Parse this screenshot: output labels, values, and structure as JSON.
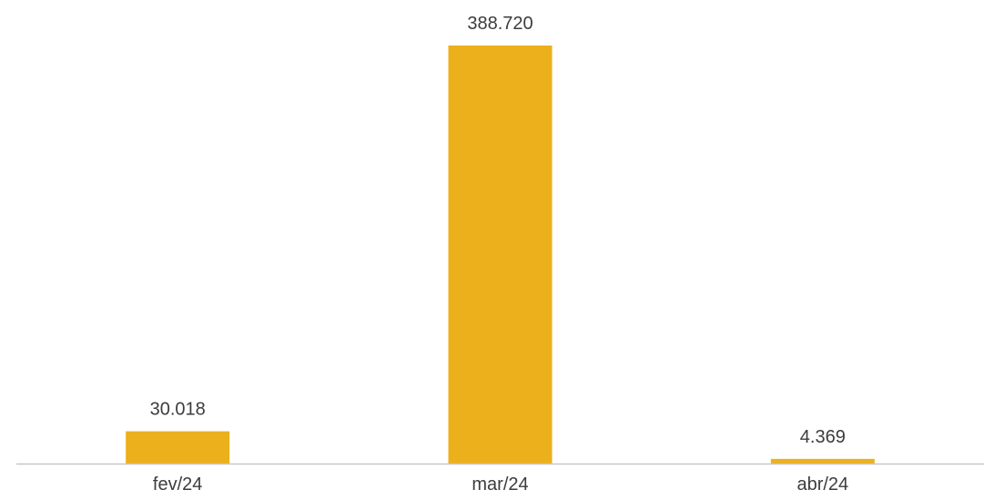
{
  "chart_data": {
    "type": "bar",
    "categories": [
      "fev/24",
      "mar/24",
      "abr/24"
    ],
    "values": [
      30018,
      388720,
      4369
    ],
    "value_labels": [
      "30.018",
      "388.720",
      "4.369"
    ],
    "ylim": [
      0,
      388720
    ],
    "grid": false,
    "legend": "none",
    "colors": {
      "bar": "#ECB01D",
      "axis": "#c8c8c8",
      "text": "#3c3c3c"
    }
  }
}
